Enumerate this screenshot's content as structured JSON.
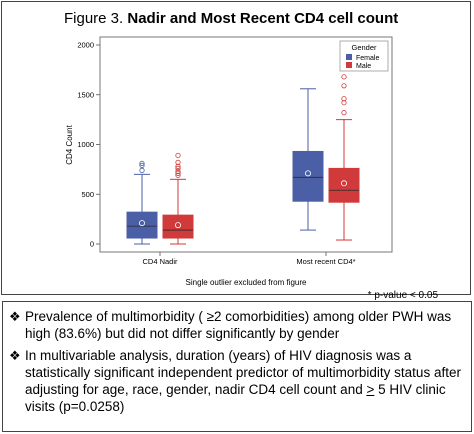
{
  "figure": {
    "title_prefix": "Figure 3. ",
    "title_bold": "Nadir and Most Recent CD4 cell count",
    "footnote": "* p-value < 0.05"
  },
  "chart_data": {
    "type": "boxplot",
    "ylabel": "CD4 Count",
    "xlabel": "Single outlier excluded from figure",
    "ylim": [
      0,
      2000
    ],
    "yticks": [
      0,
      500,
      1000,
      1500,
      2000
    ],
    "categories": [
      "CD4 Nadir",
      "Most recent CD4*"
    ],
    "legend": {
      "title": "Gender",
      "position": "top-right"
    },
    "series": [
      {
        "name": "Female",
        "color": "#4b5fa6",
        "boxes": [
          {
            "category": "CD4 Nadir",
            "whisker_low": 0,
            "q1": 60,
            "median": 180,
            "q3": 320,
            "whisker_high": 700,
            "mean": 210,
            "outliers": [
              740,
              790,
              810
            ]
          },
          {
            "category": "Most recent CD4*",
            "whisker_low": 140,
            "q1": 430,
            "median": 670,
            "q3": 930,
            "whisker_high": 1560,
            "mean": 710,
            "outliers": []
          }
        ]
      },
      {
        "name": "Male",
        "color": "#d03a3a",
        "boxes": [
          {
            "category": "CD4 Nadir",
            "whisker_low": 0,
            "q1": 60,
            "median": 140,
            "q3": 290,
            "whisker_high": 650,
            "mean": 190,
            "outliers": [
              690,
              710,
              730,
              760,
              780,
              820,
              890
            ]
          },
          {
            "category": "Most recent CD4*",
            "whisker_low": 40,
            "q1": 420,
            "median": 540,
            "q3": 760,
            "whisker_high": 1250,
            "mean": 610,
            "outliers": [
              1320,
              1420,
              1460,
              1590,
              1680
            ]
          }
        ]
      }
    ]
  },
  "notes": {
    "b1_a": "Prevalence of multimorbidity ( ",
    "b1_u": "≥",
    "b1_b": "2 comorbidities) among older PWH was high (83.6%) but did not differ significantly by gender",
    "b2_a": "In multivariable analysis, duration (years) of HIV diagnosis was a statistically significant independent predictor  of multimorbidity status after adjusting for age, race, gender, nadir CD4 cell count and ",
    "b2_u": ">",
    "b2_b": " 5 HIV clinic visits (p=0.0258)",
    "bullet_mark": "❖"
  }
}
